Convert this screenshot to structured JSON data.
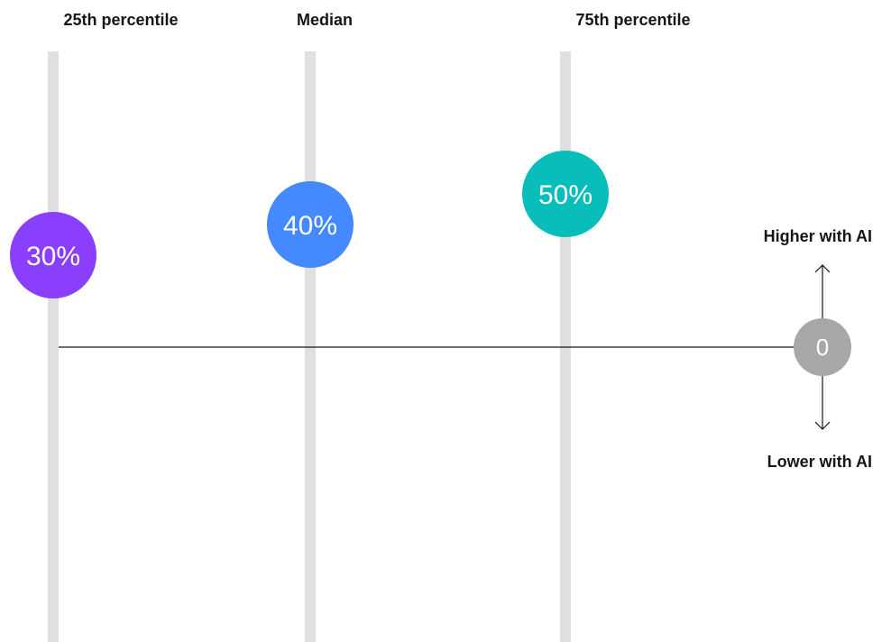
{
  "chart_data": {
    "type": "scatter",
    "categories": [
      "25th percentile",
      "Median",
      "75th percentile"
    ],
    "values": [
      30,
      40,
      50
    ],
    "value_labels": [
      "30%",
      "40%",
      "50%"
    ],
    "value_colors": [
      "#8a3ffc",
      "#4589ff",
      "#08bdba"
    ],
    "baseline": {
      "value": 0,
      "label": "0",
      "color": "#a8a8a8"
    },
    "direction_labels": {
      "up": "Higher with AI",
      "down": "Lower with AI"
    },
    "ylim": [
      -70,
      70
    ],
    "grid": true,
    "colors": {
      "column": "#e0e0e0",
      "baseline_line": "#161616",
      "text": "#161616",
      "value_text": "#ffffff"
    }
  }
}
